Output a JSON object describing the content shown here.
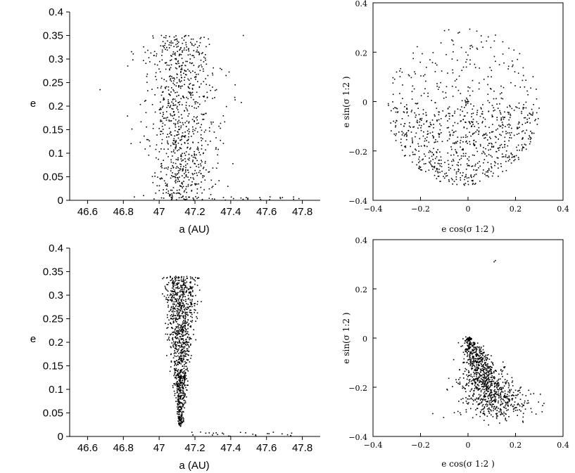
{
  "chart_data": [
    {
      "type": "scatter",
      "id": "a-e-top",
      "xlabel": "a (AU)",
      "ylabel": "e",
      "xlim": [
        46.5,
        47.9
      ],
      "ylim": [
        0,
        0.4
      ],
      "xticks": [
        "46.6",
        "46.8",
        "47",
        "47.2",
        "47.4",
        "47.6",
        "47.8"
      ],
      "yticks": [
        "0",
        "0.05",
        "0.1",
        "0.15",
        "0.2",
        "0.25",
        "0.3",
        "0.35",
        "0.4"
      ],
      "distribution": {
        "shape": "broad-cloud",
        "x_center": 47.13,
        "x_sigma": 0.09,
        "e_min": 0.0,
        "e_max": 0.35,
        "n_points": 900,
        "tail": {
          "x_from": 47.3,
          "x_to": 47.8,
          "e_max": 0.008,
          "n_points": 20
        },
        "outliers": [
          {
            "x": 46.67,
            "y": 0.235
          },
          {
            "x": 47.47,
            "y": 0.35
          }
        ]
      }
    },
    {
      "type": "scatter",
      "id": "esin-ecos-top",
      "xlabel": "e cos(σ 1:2 )",
      "ylabel": "e sin(σ 1:2 )",
      "xlim": [
        -0.4,
        0.4
      ],
      "ylim": [
        -0.4,
        0.4
      ],
      "xticks": [
        "−0.4",
        "−0.2",
        "0",
        "0.2",
        "0.4"
      ],
      "yticks": [
        "−0.4",
        "−0.2",
        "0",
        "0.2",
        "0.4"
      ],
      "distribution": {
        "shape": "disk",
        "center": [
          -0.02,
          -0.02
        ],
        "radius": 0.32,
        "dense_region": "bottom",
        "n_points": 900,
        "cluster": {
          "center": [
            0.0,
            0.0
          ],
          "n_points": 12
        }
      }
    },
    {
      "type": "scatter",
      "id": "a-e-bottom",
      "xlabel": "a (AU)",
      "ylabel": "e",
      "xlim": [
        46.5,
        47.9
      ],
      "ylim": [
        0,
        0.4
      ],
      "xticks": [
        "46.6",
        "46.8",
        "47",
        "47.2",
        "47.4",
        "47.6",
        "47.8"
      ],
      "yticks": [
        "0",
        "0.05",
        "0.1",
        "0.15",
        "0.2",
        "0.25",
        "0.3",
        "0.35",
        "0.4"
      ],
      "distribution": {
        "shape": "funnel",
        "x_center": 47.12,
        "half_width_top": 0.12,
        "half_width_bottom": 0.015,
        "e_min": 0.02,
        "e_max": 0.34,
        "n_points": 1100,
        "tail": {
          "x_from": 47.18,
          "x_to": 47.75,
          "e_max": 0.01,
          "n_points": 25
        }
      }
    },
    {
      "type": "scatter",
      "id": "esin-ecos-bottom",
      "xlabel": "e cos(σ 1:2 )",
      "ylabel": "e sin(σ 1:2 )",
      "xlim": [
        -0.4,
        0.4
      ],
      "ylim": [
        -0.4,
        0.4
      ],
      "xticks": [
        "−0.4",
        "−0.2",
        "0",
        "0.2",
        "0.4"
      ],
      "yticks": [
        "−0.4",
        "−0.2",
        "0",
        "0.2",
        "0.4"
      ],
      "distribution": {
        "shape": "comet-tail",
        "head": [
          0.0,
          0.0
        ],
        "tail_end": [
          0.15,
          -0.3
        ],
        "n_points": 1000,
        "cluster": {
          "center": [
            0.005,
            -0.002
          ],
          "n_points": 30
        },
        "outliers": [
          {
            "x": 0.11,
            "y": 0.31
          },
          {
            "x": 0.115,
            "y": 0.315
          }
        ]
      }
    }
  ]
}
